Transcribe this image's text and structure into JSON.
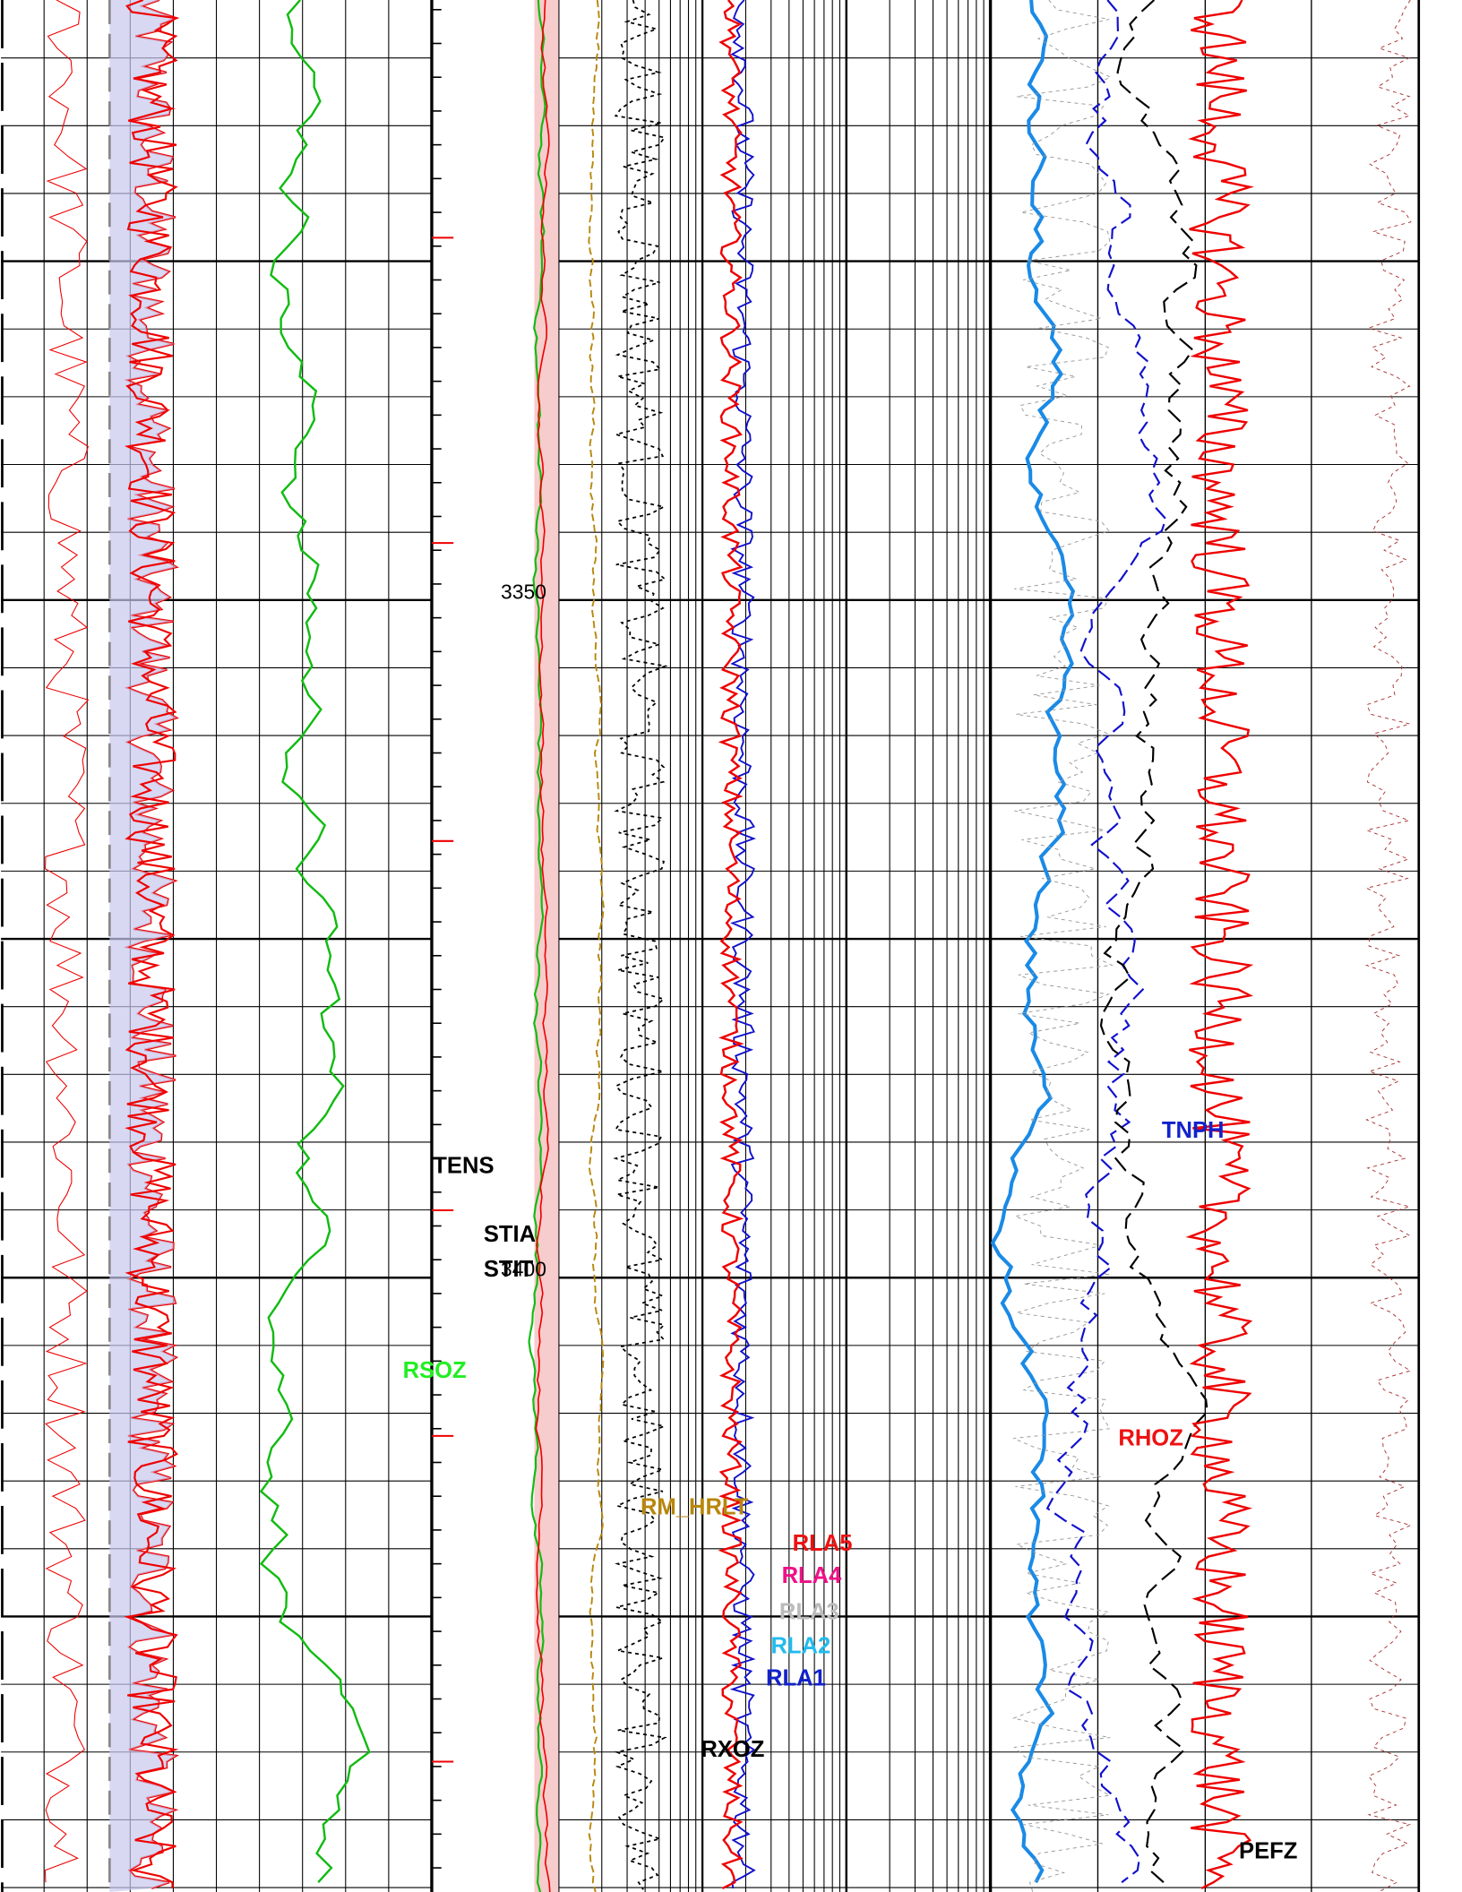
{
  "depth_labels": [
    "3350",
    "3400"
  ],
  "curve_labels": [
    {
      "text": "TENS",
      "color": "#000000"
    },
    {
      "text": "STIA",
      "color": "#000000"
    },
    {
      "text": "STIT",
      "color": "#000000"
    },
    {
      "text": "RSOZ",
      "color": "#22ee22"
    },
    {
      "text": "RM_HRLT",
      "color": "#b8860b"
    },
    {
      "text": "RLA5",
      "color": "#ee1111"
    },
    {
      "text": "RLA4",
      "color": "#ee1188"
    },
    {
      "text": "RLA3",
      "color": "#bbbbbb"
    },
    {
      "text": "RLA2",
      "color": "#22bbee"
    },
    {
      "text": "RLA1",
      "color": "#1122cc"
    },
    {
      "text": "RXOZ",
      "color": "#000000"
    },
    {
      "text": "TNPH",
      "color": "#1122cc"
    },
    {
      "text": "RHOZ",
      "color": "#ee1111"
    },
    {
      "text": "PEFZ",
      "color": "#000000"
    }
  ]
}
